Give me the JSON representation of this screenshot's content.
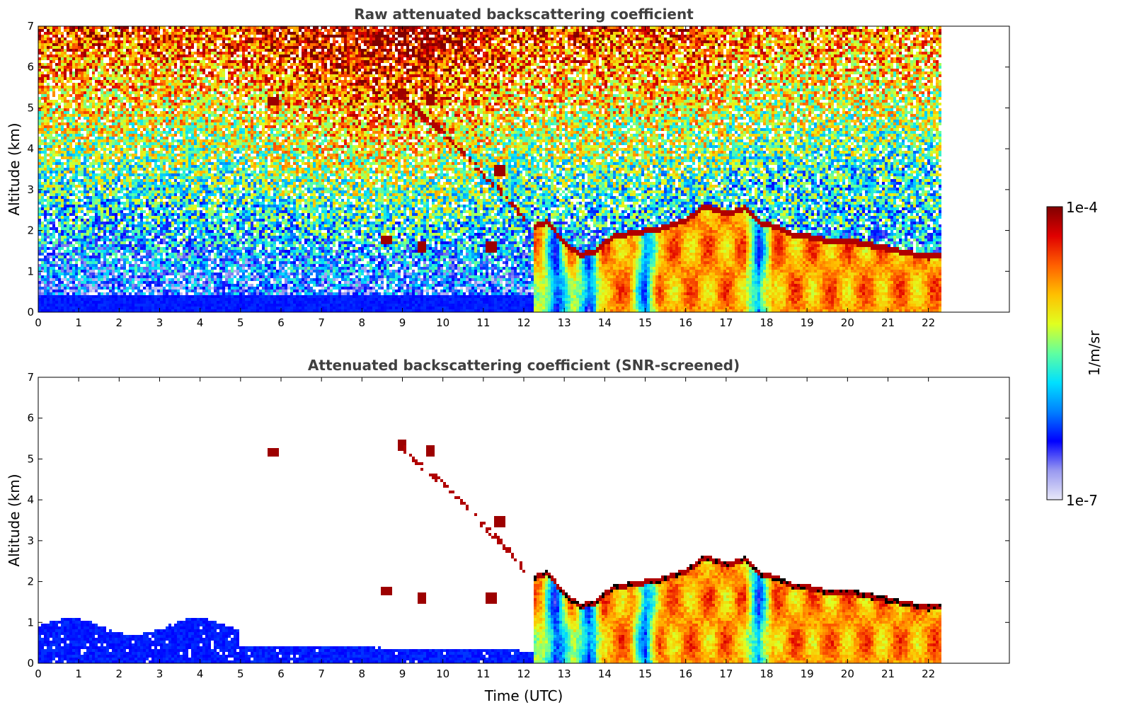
{
  "chart_data": [
    {
      "type": "heatmap",
      "title": "Raw attenuated backscattering coefficient",
      "xlabel": "",
      "ylabel": "Altitude (km)",
      "xlim": [
        0,
        24
      ],
      "ylim": [
        0,
        7
      ],
      "xticks": [
        0,
        1,
        2,
        3,
        4,
        5,
        6,
        7,
        8,
        9,
        10,
        11,
        12,
        13,
        14,
        15,
        16,
        17,
        18,
        19,
        20,
        21,
        22
      ],
      "yticks": [
        0,
        1,
        2,
        3,
        4,
        5,
        6,
        7
      ],
      "data_end_time": 22.3,
      "screened": false
    },
    {
      "type": "heatmap",
      "title": "Attenuated backscattering coefficient (SNR-screened)",
      "xlabel": "Time (UTC)",
      "ylabel": "Altitude (km)",
      "xlim": [
        0,
        24
      ],
      "ylim": [
        0,
        7
      ],
      "xticks": [
        0,
        1,
        2,
        3,
        4,
        5,
        6,
        7,
        8,
        9,
        10,
        11,
        12,
        13,
        14,
        15,
        16,
        17,
        18,
        19,
        20,
        21,
        22
      ],
      "yticks": [
        0,
        1,
        2,
        3,
        4,
        5,
        6,
        7
      ],
      "data_end_time": 22.3,
      "screened": true
    }
  ],
  "features": {
    "boundary_layer_top": {
      "time": [
        12.3,
        12.6,
        13.0,
        13.4,
        13.8,
        14.2,
        14.8,
        15.4,
        16.0,
        16.5,
        17.0,
        17.5,
        17.8,
        18.2,
        18.6,
        19.0,
        19.5,
        20.0,
        20.5,
        21.0,
        21.5,
        22.0,
        22.3
      ],
      "altitude_km": [
        2.1,
        2.2,
        1.7,
        1.4,
        1.5,
        1.85,
        1.95,
        2.05,
        2.25,
        2.6,
        2.4,
        2.55,
        2.2,
        2.1,
        1.9,
        1.85,
        1.75,
        1.75,
        1.65,
        1.55,
        1.45,
        1.35,
        1.4
      ]
    },
    "descending_layer": {
      "time": [
        9.0,
        9.5,
        10.0,
        10.5,
        11.0,
        11.5,
        12.0
      ],
      "altitude_km": [
        5.3,
        4.8,
        4.4,
        3.9,
        3.4,
        2.9,
        2.3
      ]
    },
    "cloud_patches": [
      {
        "time": 5.8,
        "altitude_km": 5.15
      },
      {
        "time": 9.0,
        "altitude_km": 5.35
      },
      {
        "time": 9.7,
        "altitude_km": 5.2
      },
      {
        "time": 11.4,
        "altitude_km": 3.45
      },
      {
        "time": 8.6,
        "altitude_km": 1.75
      },
      {
        "time": 9.5,
        "altitude_km": 1.6
      },
      {
        "time": 11.2,
        "altitude_km": 1.6
      }
    ],
    "clear_air_columns": [
      12.8,
      13.6,
      15.0,
      17.8
    ]
  },
  "colorbar": {
    "label": "1/m/sr",
    "min_label": "1e-7",
    "max_label": "1e-4",
    "colormap": "jet",
    "colors": [
      "#e8e8f8",
      "#9898f0",
      "#0000ff",
      "#0080ff",
      "#00e0ff",
      "#60ffa0",
      "#e0ff20",
      "#ffc000",
      "#ff6000",
      "#e00000",
      "#800000"
    ]
  }
}
